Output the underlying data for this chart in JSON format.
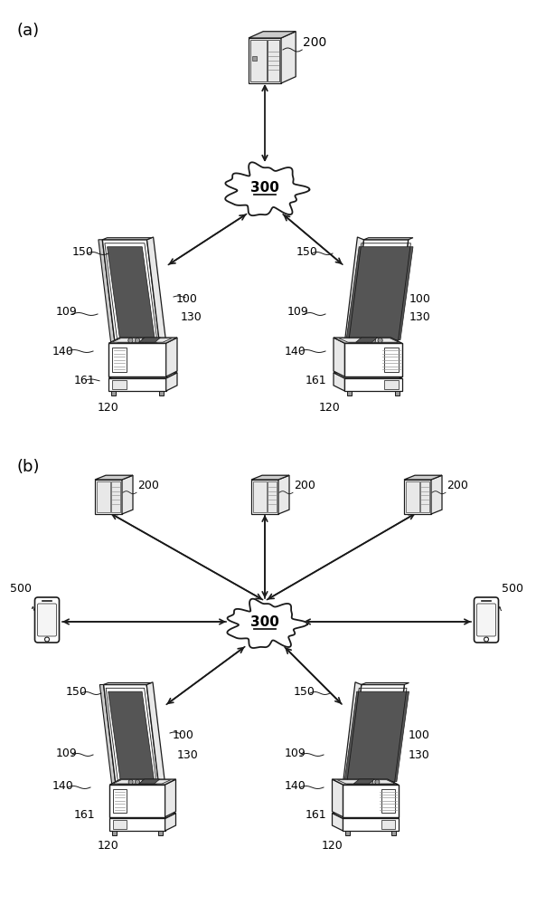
{
  "bg_color": "#ffffff",
  "line_color": "#1a1a1a",
  "fig_width": 5.93,
  "fig_height": 10.0,
  "label_a": "(a)",
  "label_b": "(b)",
  "cloud_300_label": "300",
  "server_200_label": "200",
  "phone_500_label": "500",
  "part_labels": [
    "100",
    "109",
    "120",
    "130",
    "140",
    "150",
    "161"
  ],
  "gray_light": "#e8e8e8",
  "gray_mid": "#cccccc",
  "gray_dark": "#999999",
  "gray_screen": "#555555",
  "gray_panel": "#dddddd"
}
